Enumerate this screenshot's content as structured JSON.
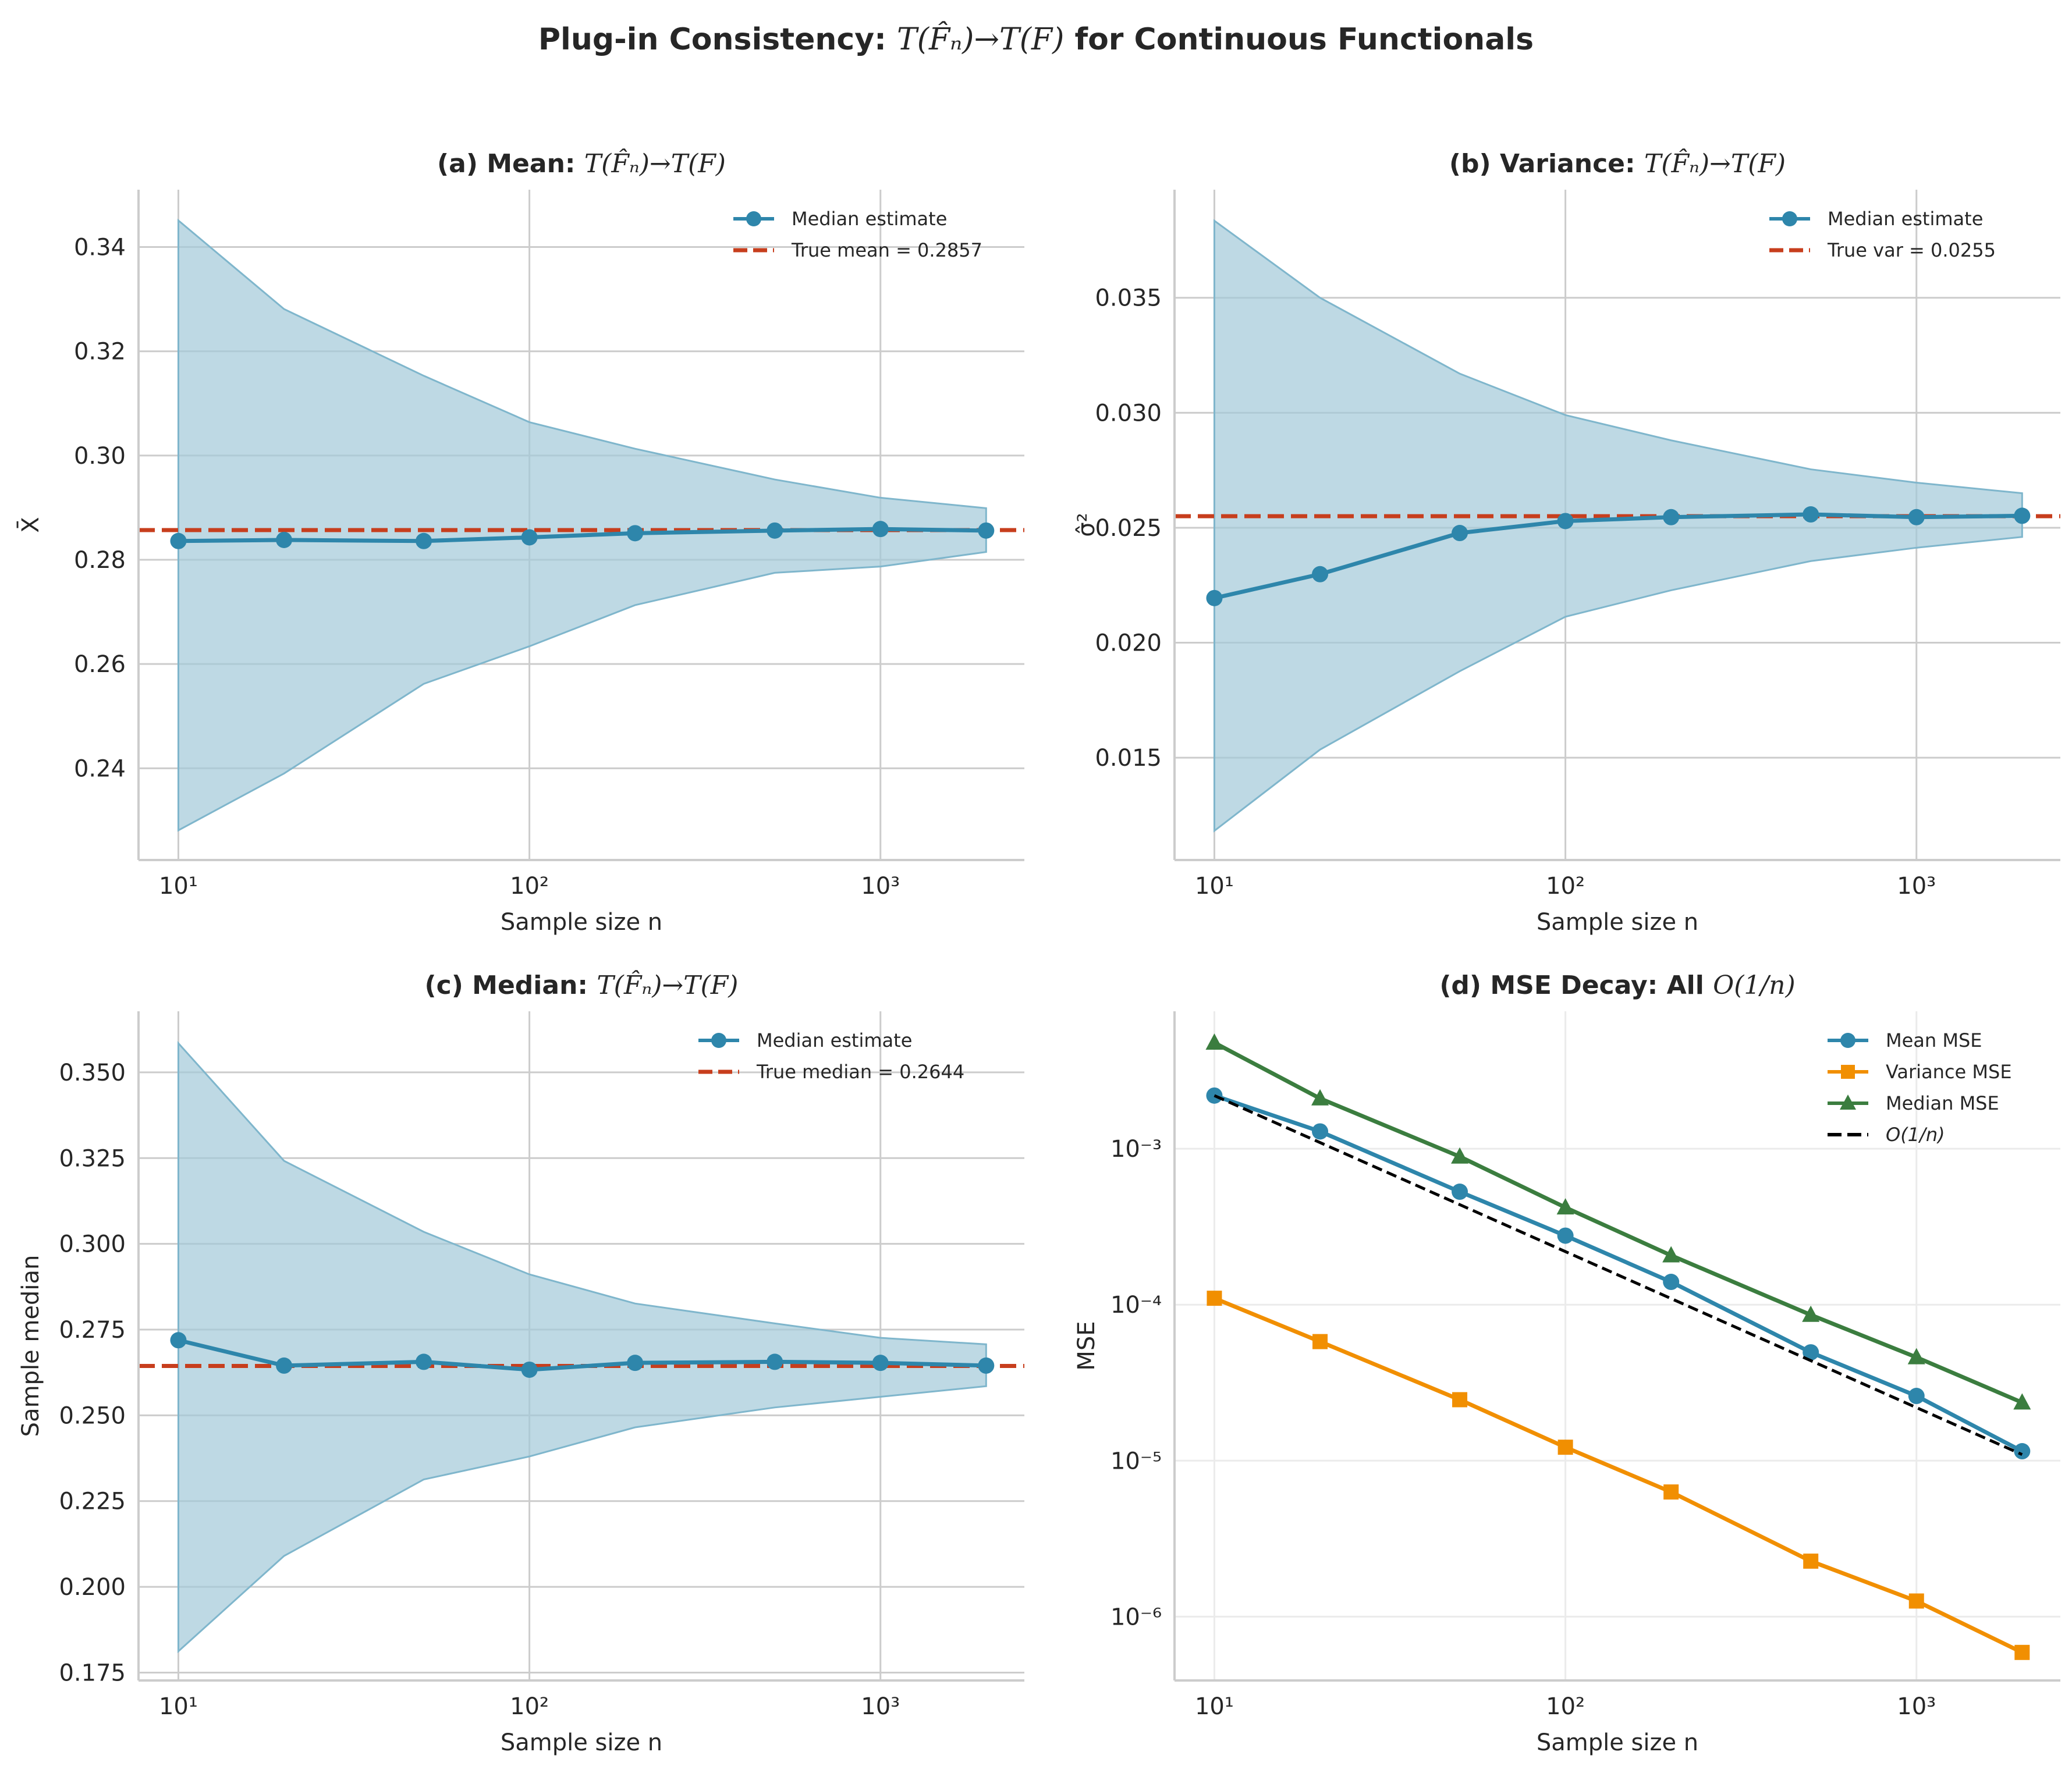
{
  "figure": {
    "suptitle_prefix": "Plug-in Consistency: ",
    "suptitle_math": "T(F̂ₙ)→T(F)",
    "suptitle_suffix": " for Continuous Functionals"
  },
  "colors": {
    "estimate": "#2e86ab",
    "band": "#a3c9d9",
    "truth": "#c73e1d",
    "variance_mse": "#f18f01",
    "median_mse": "#3b7d3f",
    "reference": "#000000",
    "grid": "#cccccc",
    "axis": "#cccccc",
    "text": "#262626"
  },
  "chart_data": [
    {
      "id": "a",
      "type": "line",
      "title_prefix": "(a) Mean: ",
      "title_math": "T(F̂ₙ)→T(F)",
      "xlabel": "Sample size n",
      "ylabel": "X̄",
      "xscale": "log",
      "yscale": "linear",
      "xlim": [
        7.7,
        2570
      ],
      "ylim": [
        0.2224,
        0.351
      ],
      "xticks": [
        10,
        100,
        1000
      ],
      "xtick_labels": [
        "10¹",
        "10²",
        "10³"
      ],
      "yticks": [
        0.24,
        0.26,
        0.28,
        0.3,
        0.32,
        0.34
      ],
      "ytick_labels": [
        "0.24",
        "0.26",
        "0.28",
        "0.30",
        "0.32",
        "0.34"
      ],
      "grid": true,
      "legend_position": "top-right",
      "x": [
        10,
        20,
        50,
        100,
        200,
        500,
        1000,
        2000
      ],
      "series": [
        {
          "name": "Median estimate",
          "kind": "line-marker",
          "marker": "circle",
          "color_key": "estimate",
          "values": [
            0.2836,
            0.2838,
            0.2836,
            0.2843,
            0.2851,
            0.2856,
            0.2859,
            0.2856
          ]
        }
      ],
      "band": {
        "lower": [
          0.2281,
          0.239,
          0.2562,
          0.2634,
          0.2713,
          0.2775,
          0.2787,
          0.2815
        ],
        "upper": [
          0.3451,
          0.3281,
          0.3153,
          0.3064,
          0.3013,
          0.2954,
          0.2919,
          0.2899
        ]
      },
      "hline": {
        "name": "True mean = 0.2857",
        "value": 0.2857,
        "color_key": "truth"
      }
    },
    {
      "id": "b",
      "type": "line",
      "title_prefix": "(b) Variance: ",
      "title_math": "T(F̂ₙ)→T(F)",
      "xlabel": "Sample size n",
      "ylabel": "σ̂²",
      "xscale": "log",
      "yscale": "linear",
      "xlim": [
        7.7,
        2570
      ],
      "ylim": [
        0.01055,
        0.0397
      ],
      "xticks": [
        10,
        100,
        1000
      ],
      "xtick_labels": [
        "10¹",
        "10²",
        "10³"
      ],
      "yticks": [
        0.015,
        0.02,
        0.025,
        0.03,
        0.035
      ],
      "ytick_labels": [
        "0.015",
        "0.020",
        "0.025",
        "0.030",
        "0.035"
      ],
      "grid": true,
      "legend_position": "top-right",
      "x": [
        10,
        20,
        50,
        100,
        200,
        500,
        1000,
        2000
      ],
      "series": [
        {
          "name": "Median estimate",
          "kind": "line-marker",
          "marker": "circle",
          "color_key": "estimate",
          "values": [
            0.02194,
            0.02298,
            0.02477,
            0.02529,
            0.02546,
            0.02558,
            0.02546,
            0.02552
          ]
        }
      ],
      "band": {
        "lower": [
          0.01182,
          0.01535,
          0.01876,
          0.02113,
          0.02228,
          0.02355,
          0.02413,
          0.0246
        ],
        "upper": [
          0.03835,
          0.035,
          0.0317,
          0.0299,
          0.0288,
          0.02754,
          0.02696,
          0.0265
        ]
      },
      "hline": {
        "name": "True var = 0.0255",
        "value": 0.0255,
        "color_key": "truth"
      }
    },
    {
      "id": "c",
      "type": "line",
      "title_prefix": "(c) Median: ",
      "title_math": "T(F̂ₙ)→T(F)",
      "xlabel": "Sample size n",
      "ylabel": "Sample median",
      "xscale": "log",
      "yscale": "linear",
      "xlim": [
        7.7,
        2570
      ],
      "ylim": [
        0.1727,
        0.3678
      ],
      "xticks": [
        10,
        100,
        1000
      ],
      "xtick_labels": [
        "10¹",
        "10²",
        "10³"
      ],
      "yticks": [
        0.175,
        0.2,
        0.225,
        0.25,
        0.275,
        0.3,
        0.325,
        0.35
      ],
      "ytick_labels": [
        "0.175",
        "0.200",
        "0.225",
        "0.250",
        "0.275",
        "0.300",
        "0.325",
        "0.350"
      ],
      "grid": true,
      "legend_position": "top-right",
      "x": [
        10,
        20,
        50,
        100,
        200,
        500,
        1000,
        2000
      ],
      "series": [
        {
          "name": "Median estimate",
          "kind": "line-marker",
          "marker": "circle",
          "color_key": "estimate",
          "values": [
            0.2719,
            0.2645,
            0.2656,
            0.2633,
            0.2653,
            0.2656,
            0.2653,
            0.2645
          ]
        }
      ],
      "band": {
        "lower": [
          0.1812,
          0.209,
          0.2313,
          0.238,
          0.2465,
          0.2523,
          0.2554,
          0.2585
        ],
        "upper": [
          0.3585,
          0.3242,
          0.3035,
          0.2911,
          0.2826,
          0.2768,
          0.2726,
          0.2707
        ]
      },
      "hline": {
        "name": "True median = 0.2644",
        "value": 0.2644,
        "color_key": "truth"
      }
    },
    {
      "id": "d",
      "type": "line",
      "title_prefix": "(d) MSE Decay: All ",
      "title_math": "O(1/n)",
      "xlabel": "Sample size n",
      "ylabel": "MSE",
      "xscale": "log",
      "yscale": "log",
      "xlim": [
        7.7,
        2570
      ],
      "ylim": [
        3.9e-07,
        0.0076
      ],
      "xticks": [
        10,
        100,
        1000
      ],
      "xtick_labels": [
        "10¹",
        "10²",
        "10³"
      ],
      "yticks": [
        1e-06,
        1e-05,
        0.0001,
        0.001
      ],
      "ytick_labels": [
        "10⁻⁶",
        "10⁻⁵",
        "10⁻⁴",
        "10⁻³"
      ],
      "grid": true,
      "legend_position": "top-right",
      "x": [
        10,
        20,
        50,
        100,
        200,
        500,
        1000,
        2000
      ],
      "series": [
        {
          "name": "Mean MSE",
          "kind": "line-marker",
          "marker": "circle",
          "color_key": "estimate",
          "values": [
            0.00219,
            0.00129,
            0.00053,
            0.000277,
            0.00014,
            4.95e-05,
            2.6e-05,
            1.15e-05
          ]
        },
        {
          "name": "Variance MSE",
          "kind": "line-marker",
          "marker": "square",
          "color_key": "variance_mse",
          "values": [
            0.00011,
            5.8e-05,
            2.46e-05,
            1.22e-05,
            6.3e-06,
            2.27e-06,
            1.26e-06,
            5.9e-07
          ]
        },
        {
          "name": "Median MSE",
          "kind": "line-marker",
          "marker": "triangle",
          "color_key": "median_mse",
          "values": [
            0.00478,
            0.0021,
            0.00089,
            0.00042,
            0.000207,
            8.6e-05,
            4.6e-05,
            2.36e-05
          ]
        },
        {
          "name": "O(1/n)",
          "kind": "dashed",
          "marker": "none",
          "color_key": "reference",
          "values": [
            0.00219,
            0.001095,
            0.000438,
            0.000219,
            0.0001095,
            4.38e-05,
            2.19e-05,
            1.095e-05
          ]
        }
      ]
    }
  ]
}
